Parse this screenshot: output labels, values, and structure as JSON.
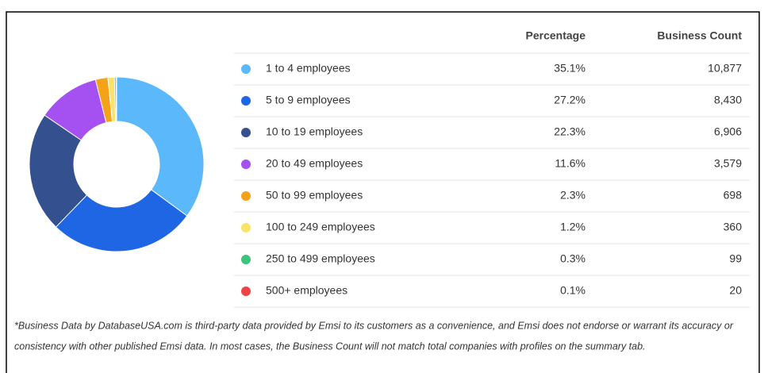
{
  "chart_data": {
    "type": "donut",
    "categories": [
      "1 to 4 employees",
      "5 to 9 employees",
      "10 to 19 employees",
      "20 to 49 employees",
      "50 to 99 employees",
      "100 to 249 employees",
      "250 to 499 employees",
      "500+ employees"
    ],
    "values": [
      35.1,
      27.2,
      22.3,
      11.6,
      2.3,
      1.2,
      0.3,
      0.1
    ],
    "value_labels": [
      "35.1%",
      "27.2%",
      "22.3%",
      "11.6%",
      "2.3%",
      "1.2%",
      "0.3%",
      "0.1%"
    ],
    "colors": [
      "#5bb8fb",
      "#1f66e5",
      "#34508f",
      "#a550f0",
      "#f5a21b",
      "#fbe36a",
      "#3cc47c",
      "#ef4444"
    ],
    "columns": [
      "Percentage",
      "Business Count"
    ],
    "counts": [
      "10,877",
      "8,430",
      "6,906",
      "3,579",
      "698",
      "360",
      "99",
      "20"
    ]
  },
  "footnote": [
    "*Business Data by DatabaseUSA.com is third-party data provided by Emsi to its customers as a convenience, and Emsi does not endorse or warrant its accuracy or",
    "consistency with other published Emsi data. In most cases, the Business Count will not match total companies with profiles on the summary tab."
  ]
}
